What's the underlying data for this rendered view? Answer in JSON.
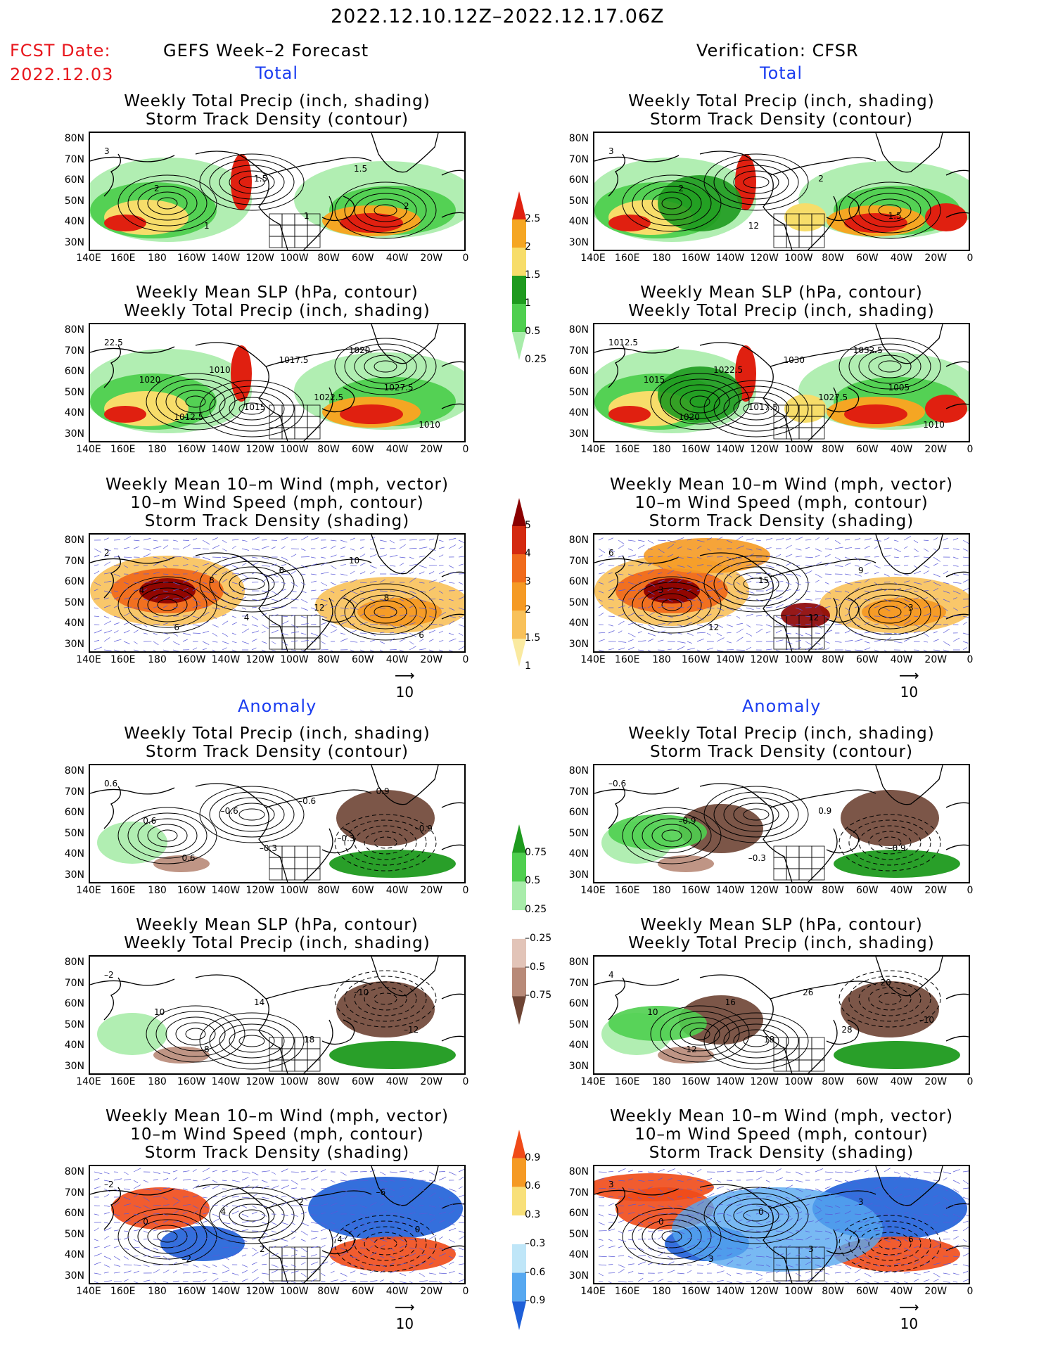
{
  "header": {
    "date_range": "2022.12.10.12Z–2022.12.17.06Z",
    "fcst_label": "FCST Date:",
    "fcst_date": "2022.12.03",
    "left_title": "GEFS Week–2 Forecast",
    "right_title": "Verification: CFSR",
    "total_label": "Total",
    "anomaly_label": "Anomaly"
  },
  "panel_titles": {
    "precip_track": [
      "Weekly Total Precip (inch, shading)",
      "Storm Track Density (contour)"
    ],
    "slp_precip": [
      "Weekly Mean SLP (hPa, contour)",
      "Weekly Total Precip (inch, shading)"
    ],
    "wind_track": [
      "Weekly Mean 10–m Wind (mph, vector)",
      "10–m Wind Speed (mph, contour)",
      "Storm Track Density (shading)"
    ]
  },
  "axes": {
    "lat_ticks": [
      "80N",
      "70N",
      "60N",
      "50N",
      "40N",
      "30N"
    ],
    "lon_ticks": [
      "140E",
      "160E",
      "180",
      "160W",
      "140W",
      "120W",
      "100W",
      "80W",
      "60W",
      "40W",
      "20W",
      "0"
    ]
  },
  "vector_ref": "10",
  "colorbars": {
    "precip_total": {
      "labels": [
        "2.5",
        "2",
        "1.5",
        "1",
        "0.5",
        "0.25"
      ],
      "colors": [
        "#e02010",
        "#f5a623",
        "#f7dd6a",
        "#1e9a1e",
        "#4fcf4f",
        "#a8ecaa"
      ]
    },
    "track_total": {
      "labels": [
        "5",
        "4",
        "3",
        "2",
        "1.5",
        "1"
      ],
      "colors": [
        "#8b0000",
        "#d42a10",
        "#f06b1c",
        "#f59a24",
        "#f8c15a",
        "#faeaa0"
      ]
    },
    "precip_anom": {
      "labels": [
        "0.75",
        "0.5",
        "0.25",
        "–0.25",
        "–0.5",
        "–0.75"
      ],
      "colors": [
        "#1e9a1e",
        "#4fcf4f",
        "#a8ecaa",
        "#ffffff",
        "#e2c4b8",
        "#b88a78",
        "#6e4434"
      ]
    },
    "track_anom": {
      "labels": [
        "0.9",
        "0.6",
        "0.3",
        "–0.3",
        "–0.6",
        "–0.9"
      ],
      "colors": [
        "#f04a18",
        "#f59a24",
        "#f8e07a",
        "#ffffff",
        "#bfe6f8",
        "#56a8f0",
        "#1e5fd8"
      ]
    }
  },
  "map_labels": {
    "l_precip_total": [
      "3",
      "2",
      "1",
      "1.5",
      "1",
      "1.5",
      "2"
    ],
    "r_precip_total": [
      "3",
      "2",
      "12",
      "2",
      "1.5"
    ],
    "l_slp_total": [
      "22.5",
      "1020",
      "1012.5",
      "1010",
      "1015",
      "1017.5",
      "1022.5",
      "1020",
      "1027.5",
      "1010"
    ],
    "r_slp_total": [
      "1012.5",
      "1015",
      "1020",
      "1022.5",
      "1017.5",
      "1030",
      "1027.5",
      "1032.5",
      "1005",
      "1010"
    ],
    "l_wind_total": [
      "2",
      "4",
      "6",
      "8",
      "4",
      "6",
      "12",
      "10",
      "8",
      "6"
    ],
    "r_wind_total": [
      "6",
      "3",
      "12",
      "15",
      "12",
      "9",
      "3"
    ],
    "l_precip_anom": [
      "0.6",
      "0.6",
      "0.6",
      "–0.6",
      "–0.3",
      "–0.6",
      "–0.3",
      "0.9",
      "–0.9"
    ],
    "r_precip_anom": [
      "–0.6",
      "–0.9",
      "–0.3",
      "0.9",
      "–0.9"
    ],
    "l_slp_anom": [
      "–2",
      "10",
      "8",
      "14",
      "18",
      "–10",
      "–12"
    ],
    "r_slp_anom": [
      "4",
      "10",
      "12",
      "16",
      "18",
      "26",
      "28",
      "20",
      "–10"
    ],
    "l_wind_anom": [
      "–2",
      "0",
      "–2",
      "4",
      "2",
      "2",
      "4",
      "–6",
      "0"
    ],
    "r_wind_anom": [
      "3",
      "0",
      "3",
      "0",
      "3",
      "3",
      "6"
    ]
  }
}
